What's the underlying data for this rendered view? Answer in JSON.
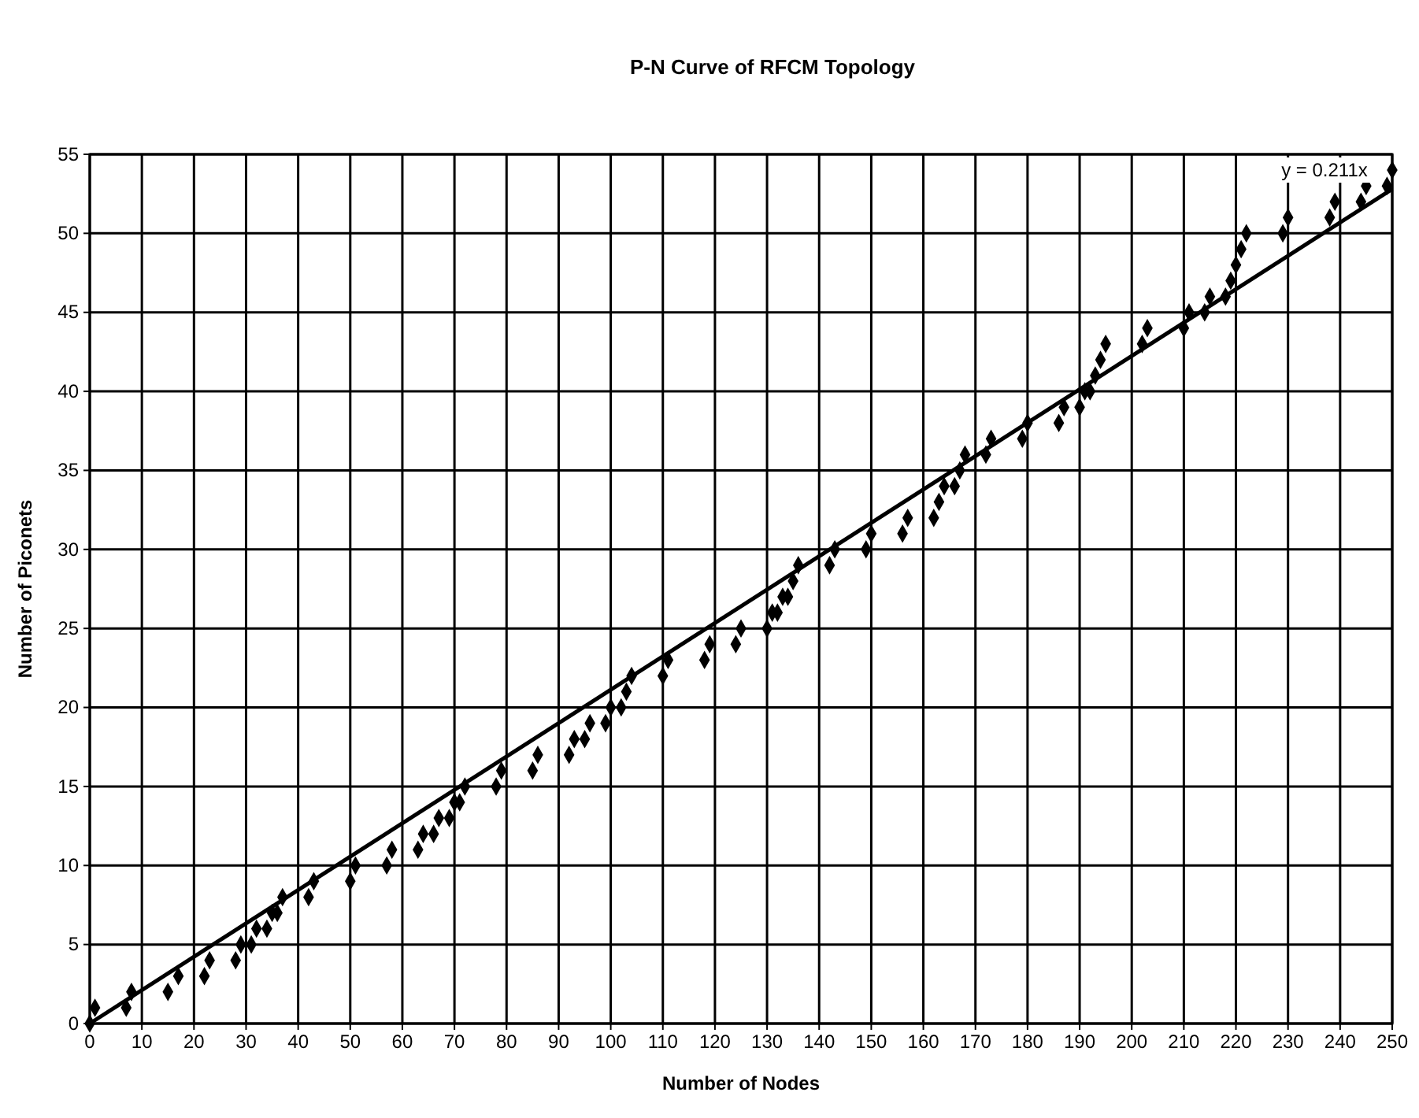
{
  "chart_data": {
    "type": "scatter",
    "title": "P-N Curve of RFCM Topology",
    "xlabel": "Number of Nodes",
    "ylabel": "Number of Piconets",
    "xlim": [
      0,
      250
    ],
    "xticks": [
      0,
      10,
      20,
      30,
      40,
      50,
      60,
      70,
      80,
      90,
      100,
      110,
      120,
      130,
      140,
      150,
      160,
      170,
      180,
      190,
      200,
      210,
      220,
      230,
      240,
      250
    ],
    "ylim": [
      0,
      55
    ],
    "yticks": [
      0,
      5,
      10,
      15,
      20,
      25,
      30,
      35,
      40,
      45,
      50,
      55
    ],
    "grid": true,
    "marker": "diamond",
    "series": [
      {
        "color": "#000000",
        "x": [
          0,
          1,
          7,
          8,
          15,
          17,
          22,
          23,
          28,
          29,
          31,
          32,
          34,
          35,
          36,
          37,
          42,
          43,
          50,
          51,
          57,
          58,
          63,
          64,
          66,
          67,
          69,
          70,
          71,
          72,
          78,
          79,
          85,
          86,
          92,
          93,
          95,
          96,
          99,
          100,
          102,
          103,
          104,
          110,
          111,
          118,
          119,
          124,
          125,
          130,
          131,
          132,
          133,
          134,
          135,
          136,
          142,
          143,
          149,
          150,
          156,
          157,
          162,
          163,
          164,
          166,
          167,
          168,
          172,
          173,
          179,
          180,
          186,
          187,
          190,
          191,
          192,
          193,
          194,
          195,
          202,
          203,
          210,
          211,
          214,
          215,
          218,
          219,
          220,
          221,
          222,
          229,
          230,
          238,
          239,
          244,
          245,
          249,
          250
        ],
        "values": [
          0,
          1,
          1,
          2,
          2,
          3,
          3,
          4,
          4,
          5,
          5,
          6,
          6,
          7,
          7,
          8,
          8,
          9,
          9,
          10,
          10,
          11,
          11,
          12,
          12,
          13,
          13,
          14,
          14,
          15,
          15,
          16,
          16,
          17,
          17,
          18,
          18,
          19,
          19,
          20,
          20,
          21,
          22,
          22,
          23,
          23,
          24,
          24,
          25,
          25,
          26,
          26,
          27,
          27,
          28,
          29,
          29,
          30,
          30,
          31,
          31,
          32,
          32,
          33,
          34,
          34,
          35,
          36,
          36,
          37,
          37,
          38,
          38,
          39,
          39,
          40,
          40,
          41,
          42,
          43,
          43,
          44,
          44,
          45,
          45,
          46,
          46,
          47,
          48,
          49,
          50,
          50,
          51,
          51,
          52,
          52,
          53,
          53,
          54
        ]
      },
      {
        "type": "line",
        "color": "#000000",
        "marker": "none",
        "x": [
          0,
          250
        ],
        "values": [
          0,
          52.8
        ]
      }
    ],
    "annotations": [
      "y = 0.211x"
    ]
  }
}
